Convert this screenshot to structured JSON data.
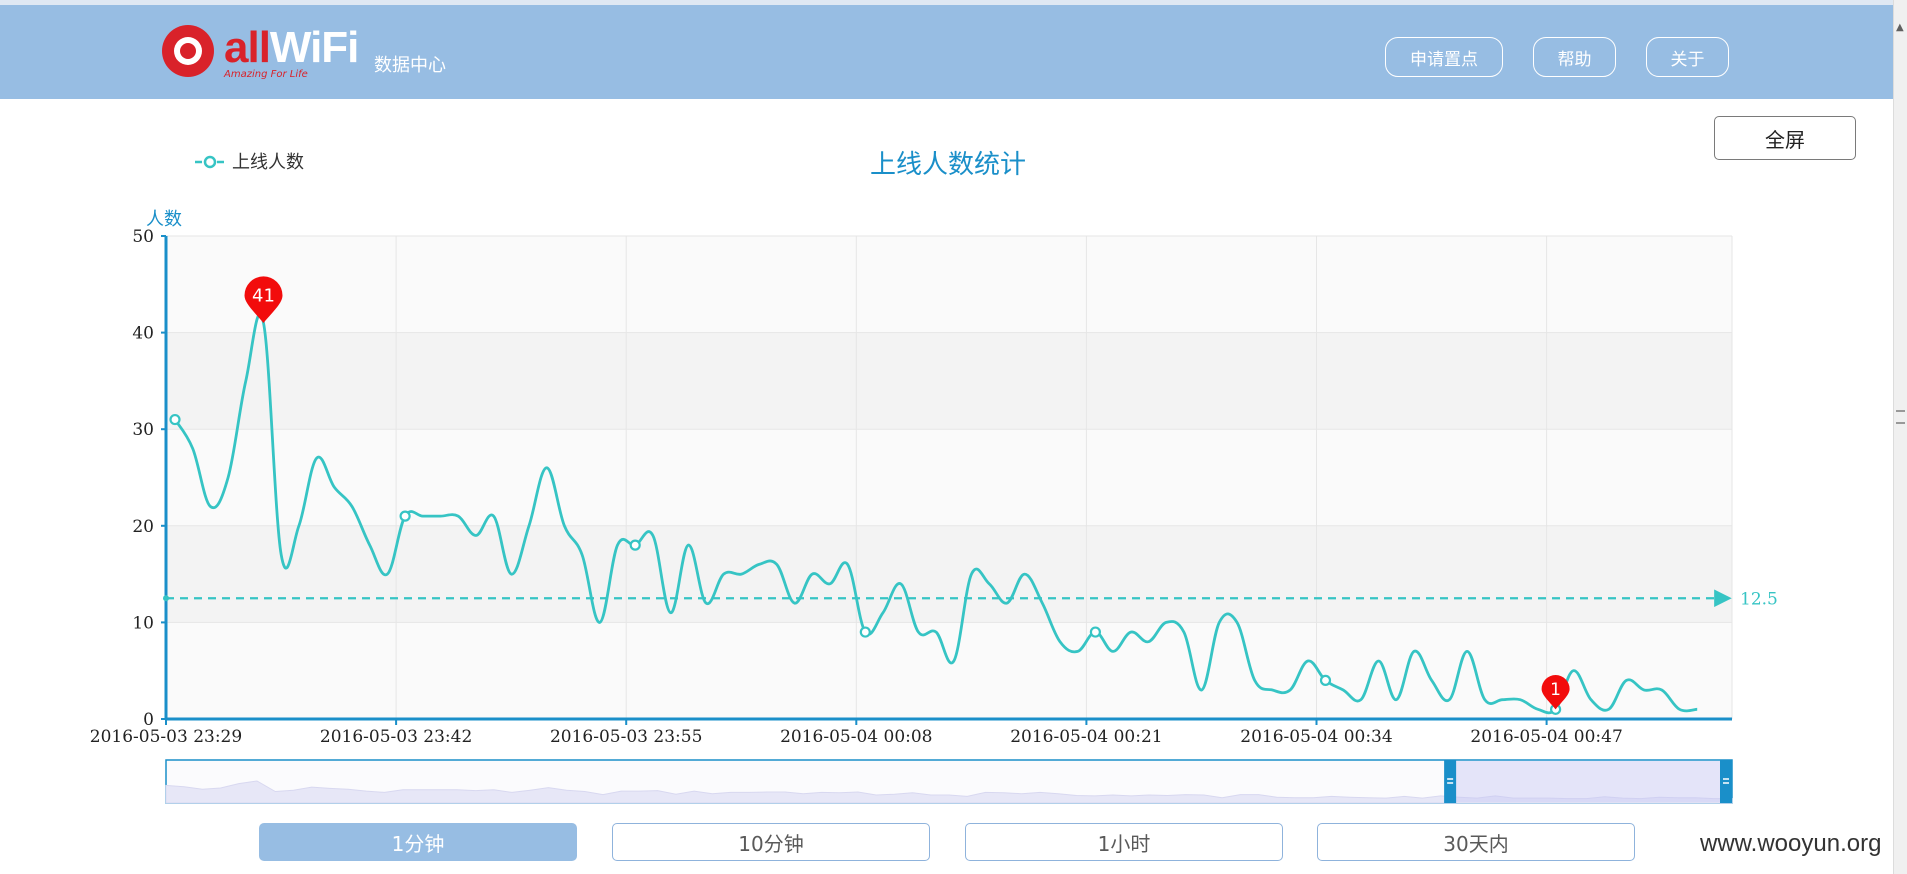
{
  "header": {
    "brand": "allWiFi",
    "brand_all": "all",
    "brand_wifi": "WiFi",
    "tagline": "Amazing For Life",
    "subtitle": "数据中心",
    "nav": [
      "申请置点",
      "帮助",
      "关于"
    ]
  },
  "fullscreen_label": "全屏",
  "range_buttons": [
    "1分钟",
    "10分钟",
    "1小时",
    "30天内"
  ],
  "active_range": 0,
  "watermark": "www.wooyun.org",
  "chart_data": {
    "type": "line",
    "title": "上线人数统计",
    "ylabel": "人数",
    "ylim": [
      0,
      50
    ],
    "y_ticks": [
      0,
      10,
      20,
      30,
      40,
      50
    ],
    "x_ticks": [
      "2016-05-03 23:29",
      "2016-05-03 23:42",
      "2016-05-03 23:55",
      "2016-05-04 00:08",
      "2016-05-04 00:21",
      "2016-05-04 00:34",
      "2016-05-04 00:47"
    ],
    "x_start": "2016-05-03 23:29",
    "x_step_minutes": 1,
    "series": [
      {
        "name": "上线人数",
        "color": "#36c4c4",
        "values": [
          31,
          28,
          22,
          25,
          35,
          41,
          17,
          20,
          27,
          24,
          22,
          18,
          15,
          21,
          21,
          21,
          21,
          19,
          21,
          15,
          20,
          26,
          20,
          17,
          10,
          18,
          18,
          19,
          11,
          18,
          12,
          15,
          15,
          16,
          16,
          12,
          15,
          14,
          16,
          9,
          11,
          14,
          9,
          9,
          6,
          15,
          14,
          12,
          15,
          12,
          8,
          7,
          9,
          7,
          9,
          8,
          10,
          9,
          3,
          10,
          10,
          4,
          3,
          3,
          6,
          4,
          3,
          2,
          6,
          2,
          7,
          4,
          2,
          7,
          2,
          2,
          2,
          1,
          1,
          5,
          2,
          1,
          4,
          3,
          3,
          1,
          1
        ]
      }
    ],
    "markers_every": 13,
    "mark_points": [
      {
        "label": "41",
        "type": "max",
        "index": 5,
        "value": 41
      },
      {
        "label": "1",
        "type": "min",
        "index": 78,
        "value": 1
      }
    ],
    "mark_line": {
      "label": "12.5",
      "value": 12.5
    },
    "legend": {
      "position": "top-left",
      "entries": [
        "上线人数"
      ]
    },
    "grid": true,
    "data_zoom": {
      "start": 0.82,
      "end": 1.0
    }
  }
}
